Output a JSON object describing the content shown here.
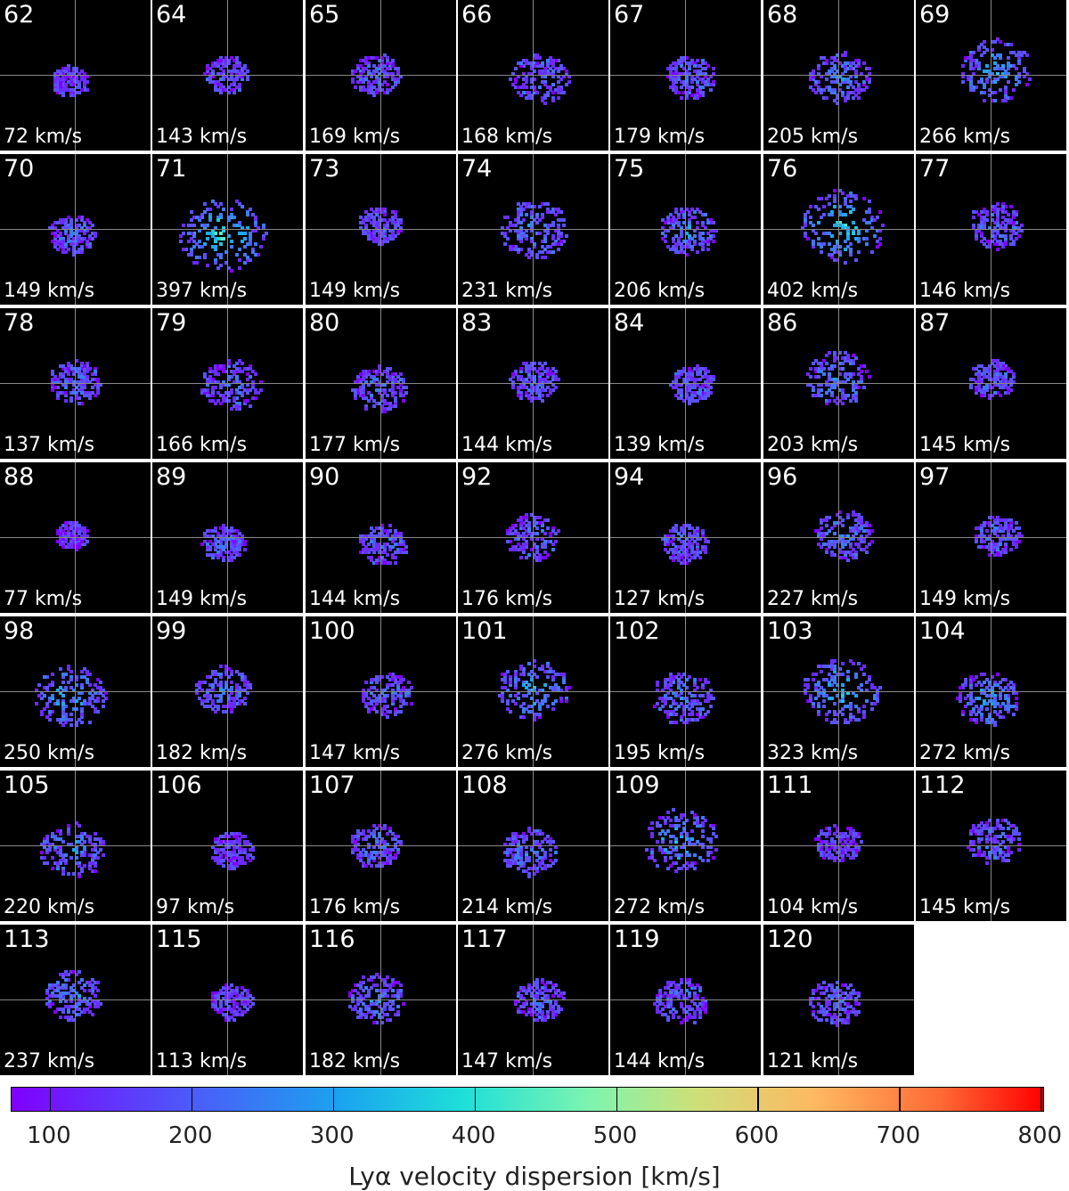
{
  "chart_data": {
    "type": "heatmap",
    "panels": [
      {
        "id": "62",
        "dispersion": "72 km/s"
      },
      {
        "id": "64",
        "dispersion": "143 km/s"
      },
      {
        "id": "65",
        "dispersion": "169 km/s"
      },
      {
        "id": "66",
        "dispersion": "168 km/s"
      },
      {
        "id": "67",
        "dispersion": "179 km/s"
      },
      {
        "id": "68",
        "dispersion": "205 km/s"
      },
      {
        "id": "69",
        "dispersion": "266 km/s"
      },
      {
        "id": "70",
        "dispersion": "149 km/s"
      },
      {
        "id": "71",
        "dispersion": "397 km/s"
      },
      {
        "id": "73",
        "dispersion": "149 km/s"
      },
      {
        "id": "74",
        "dispersion": "231 km/s"
      },
      {
        "id": "75",
        "dispersion": "206 km/s"
      },
      {
        "id": "76",
        "dispersion": "402 km/s"
      },
      {
        "id": "77",
        "dispersion": "146 km/s"
      },
      {
        "id": "78",
        "dispersion": "137 km/s"
      },
      {
        "id": "79",
        "dispersion": "166 km/s"
      },
      {
        "id": "80",
        "dispersion": "177 km/s"
      },
      {
        "id": "83",
        "dispersion": "144 km/s"
      },
      {
        "id": "84",
        "dispersion": "139 km/s"
      },
      {
        "id": "86",
        "dispersion": "203 km/s"
      },
      {
        "id": "87",
        "dispersion": "145 km/s"
      },
      {
        "id": "88",
        "dispersion": "77 km/s"
      },
      {
        "id": "89",
        "dispersion": "149 km/s"
      },
      {
        "id": "90",
        "dispersion": "144 km/s"
      },
      {
        "id": "92",
        "dispersion": "176 km/s"
      },
      {
        "id": "94",
        "dispersion": "127 km/s"
      },
      {
        "id": "96",
        "dispersion": "227 km/s"
      },
      {
        "id": "97",
        "dispersion": "149 km/s"
      },
      {
        "id": "98",
        "dispersion": "250 km/s"
      },
      {
        "id": "99",
        "dispersion": "182 km/s"
      },
      {
        "id": "100",
        "dispersion": "147 km/s"
      },
      {
        "id": "101",
        "dispersion": "276 km/s"
      },
      {
        "id": "102",
        "dispersion": "195 km/s"
      },
      {
        "id": "103",
        "dispersion": "323 km/s"
      },
      {
        "id": "104",
        "dispersion": "272 km/s"
      },
      {
        "id": "105",
        "dispersion": "220 km/s"
      },
      {
        "id": "106",
        "dispersion": "97 km/s"
      },
      {
        "id": "107",
        "dispersion": "176 km/s"
      },
      {
        "id": "108",
        "dispersion": "214 km/s"
      },
      {
        "id": "109",
        "dispersion": "272 km/s"
      },
      {
        "id": "111",
        "dispersion": "104 km/s"
      },
      {
        "id": "112",
        "dispersion": "145 km/s"
      },
      {
        "id": "113",
        "dispersion": "237 km/s"
      },
      {
        "id": "115",
        "dispersion": "113 km/s"
      },
      {
        "id": "116",
        "dispersion": "182 km/s"
      },
      {
        "id": "117",
        "dispersion": "147 km/s"
      },
      {
        "id": "119",
        "dispersion": "144 km/s"
      },
      {
        "id": "120",
        "dispersion": "121 km/s"
      }
    ],
    "colorbar": {
      "label": "Lyα velocity dispersion [km/s]",
      "ticks": [
        "100",
        "200",
        "300",
        "400",
        "500",
        "600",
        "700",
        "800"
      ],
      "range": [
        73,
        803
      ],
      "colormap": "rainbow"
    }
  }
}
